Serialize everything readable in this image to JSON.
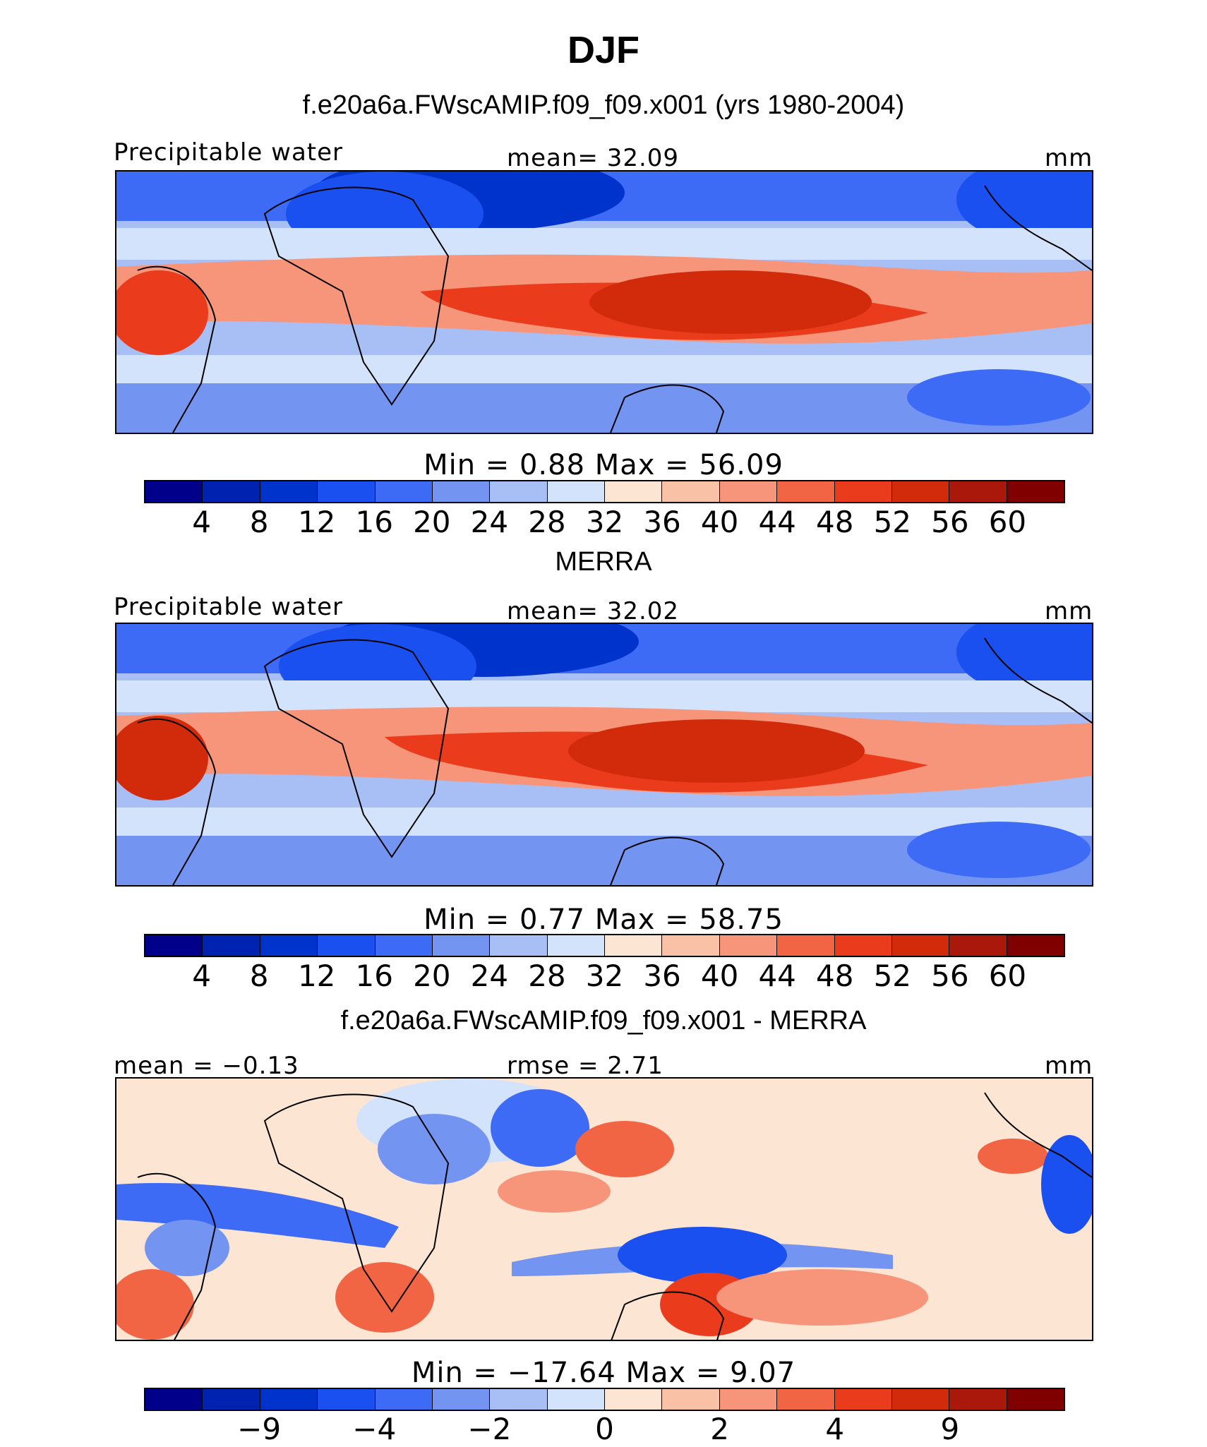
{
  "title": "DJF",
  "colors": {
    "abs": [
      "#00008b",
      "#0022b0",
      "#0033cc",
      "#1a4ff0",
      "#3d6bf5",
      "#7394f0",
      "#a7bff5",
      "#d3e3fb",
      "#fde5d3",
      "#f9c2a7",
      "#f7957a",
      "#f26544",
      "#ea3b1c",
      "#d22b0b",
      "#a9180a",
      "#800000"
    ],
    "diff": [
      "#00008b",
      "#0022b0",
      "#0033cc",
      "#1a4ff0",
      "#3d6bf5",
      "#7394f0",
      "#a7bff5",
      "#d3e3fb",
      "#fde5d3",
      "#f9c2a7",
      "#f7957a",
      "#f26544",
      "#ea3b1c",
      "#d22b0b",
      "#a9180a",
      "#800000"
    ]
  },
  "panel1": {
    "title": "f.e20a6a.FWscAMIP.f09_f09.x001 (yrs 1980-2004)",
    "left": "Precipitable water",
    "center": "mean=   32.09",
    "right": "mm",
    "minmax": "Min =    0.88  Max =   56.09",
    "ticks": [
      "4",
      "8",
      "12",
      "16",
      "20",
      "24",
      "28",
      "32",
      "36",
      "40",
      "44",
      "48",
      "52",
      "56",
      "60"
    ]
  },
  "panel2": {
    "title": "MERRA",
    "left": "Precipitable water",
    "center": "mean=   32.02",
    "right": "mm",
    "minmax": "Min =    0.77  Max =   58.75",
    "ticks": [
      "4",
      "8",
      "12",
      "16",
      "20",
      "24",
      "28",
      "32",
      "36",
      "40",
      "44",
      "48",
      "52",
      "56",
      "60"
    ]
  },
  "panel3": {
    "title": "f.e20a6a.FWscAMIP.f09_f09.x001 - MERRA",
    "left": "mean =  −0.13",
    "center": "rmse =    2.71",
    "right": "mm",
    "minmax": "Min = −17.64  Max =    9.07",
    "ticks": [
      "−9",
      "−4",
      "−2",
      "0",
      "2",
      "4",
      "9"
    ]
  }
}
